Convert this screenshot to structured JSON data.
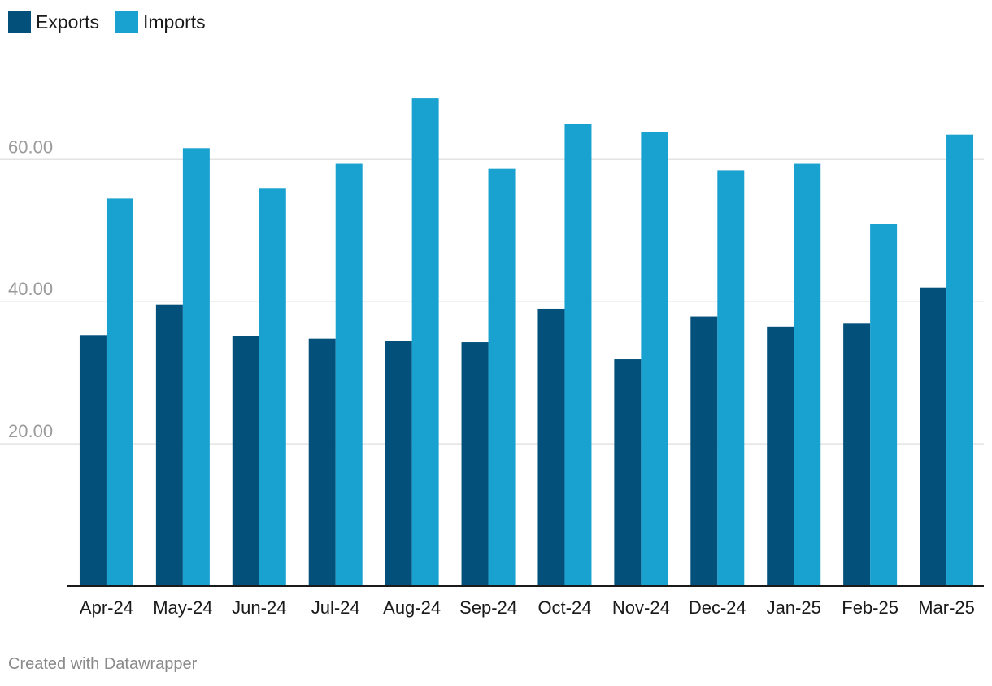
{
  "chart_data": {
    "type": "bar",
    "categories": [
      "Apr-24",
      "May-24",
      "Jun-24",
      "Jul-24",
      "Aug-24",
      "Sep-24",
      "Oct-24",
      "Nov-24",
      "Dec-24",
      "Jan-25",
      "Feb-25",
      "Mar-25"
    ],
    "series": [
      {
        "name": "Exports",
        "color": "#03507b",
        "values": [
          35.3,
          39.6,
          35.2,
          34.8,
          34.5,
          34.3,
          39.0,
          31.9,
          37.9,
          36.5,
          36.9,
          42.0
        ]
      },
      {
        "name": "Imports",
        "color": "#19a1cf",
        "values": [
          54.5,
          61.6,
          56.0,
          59.4,
          68.6,
          58.7,
          65.0,
          63.9,
          58.5,
          59.4,
          50.9,
          63.5
        ]
      }
    ],
    "yticks": [
      "20.00",
      "40.00",
      "60.00"
    ],
    "ytick_values": [
      20,
      40,
      60
    ],
    "ylim": [
      0,
      70
    ],
    "grid": true,
    "legend_position": "top-left"
  },
  "footer": {
    "credit": "Created with Datawrapper"
  }
}
